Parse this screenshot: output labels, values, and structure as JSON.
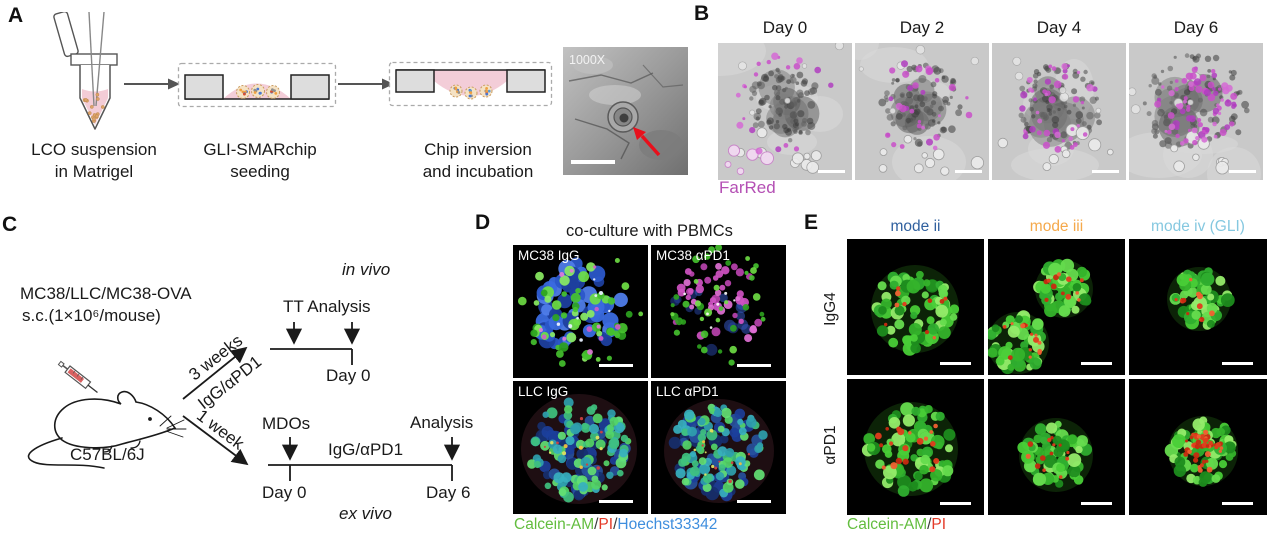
{
  "panels": {
    "a": {
      "label": "A",
      "step1_line1": "LCO suspension",
      "step1_line2": "in Matrigel",
      "step2_line1": "GLI-SMARchip",
      "step2_line2": "seeding",
      "step3_line1": "Chip inversion",
      "step3_line2": "and incubation",
      "sem_magnification": "1000X"
    },
    "b": {
      "label": "B",
      "timepoints": [
        "Day 0",
        "Day 2",
        "Day 4",
        "Day 6"
      ],
      "stain": "FarRed",
      "stain_color": "#b44fb4"
    },
    "c": {
      "label": "C",
      "cell_lines": "MC38/LLC/MC38-OVA",
      "injection": "s.c.(1×10⁶/mouse)",
      "strain": "C57BL/6J",
      "arm_top": {
        "duration": "3 weeks",
        "treatment": "IgG/αPD1"
      },
      "arm_bottom": {
        "duration": "1 week"
      },
      "invivo": {
        "label": "in vivo",
        "events": "TT Analysis",
        "day": "Day 0"
      },
      "exvivo": {
        "label": "ex vivo",
        "start_event": "MDOs",
        "treatment": "IgG/αPD1",
        "end_event": "Analysis",
        "day_start": "Day 0",
        "day_end": "Day 6"
      }
    },
    "d": {
      "label": "D",
      "title": "co-culture with PBMCs",
      "image_labels": [
        "MC38 IgG",
        "MC38 αPD1",
        "LLC IgG",
        "LLC αPD1"
      ],
      "legend": [
        {
          "text": "Calcein-AM",
          "color": "#62bd3e"
        },
        {
          "text": "/",
          "color": "#3a3a3a"
        },
        {
          "text": "PI",
          "color": "#e43a28"
        },
        {
          "text": "/",
          "color": "#3a3a3a"
        },
        {
          "text": "Hoechst33342",
          "color": "#3e8ede"
        }
      ]
    },
    "e": {
      "label": "E",
      "col_headers": [
        {
          "text": "mode ii",
          "color": "#31619f"
        },
        {
          "text": "mode iii",
          "color": "#f5a94b"
        },
        {
          "text": "mode iv (GLI)",
          "color": "#85c8e0"
        }
      ],
      "row_headers": [
        "IgG4",
        "αPD1"
      ],
      "legend": [
        {
          "text": "Calcein-AM",
          "color": "#62bd3e"
        },
        {
          "text": "/",
          "color": "#3a3a3a"
        },
        {
          "text": "PI",
          "color": "#e43a28"
        }
      ]
    }
  }
}
